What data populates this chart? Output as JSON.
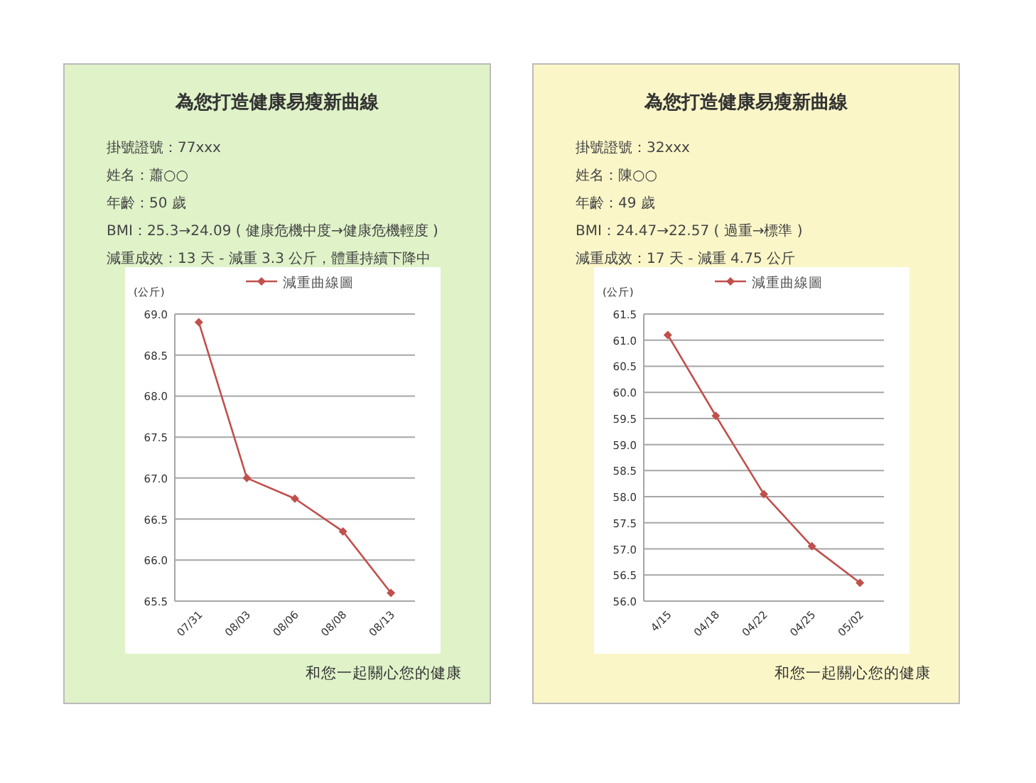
{
  "chart_data": [
    {
      "type": "line",
      "title": "為您打造健康易瘦新曲線",
      "ylabel": "(公斤)",
      "annotations": [
        "掛號證號：77xxx",
        "姓名：蕭○○",
        "年齡：50 歲",
        "BMI：25.3→24.09 ( 健康危機中度→健康危機輕度 )",
        "減重成效：13 天 - 減重 3.3 公斤，體重持續下降中",
        "和您一起關心您的健康"
      ],
      "categories": [
        "07/31",
        "08/03",
        "08/06",
        "08/08",
        "08/13"
      ],
      "series": [
        {
          "name": "減重曲線圖",
          "color": "#c0504d",
          "values": [
            68.9,
            67.0,
            66.75,
            66.35,
            65.6
          ]
        }
      ],
      "ylim": [
        65.5,
        69.0
      ],
      "yticks": [
        {
          "value": 65.5,
          "label": "65.5"
        },
        {
          "value": 66,
          "label": "66.0"
        },
        {
          "value": 66.5,
          "label": "66.5"
        },
        {
          "value": 67,
          "label": "67.0"
        },
        {
          "value": 67.5,
          "label": "67.5"
        },
        {
          "value": 68,
          "label": "68.0"
        },
        {
          "value": 68.5,
          "label": "68.5"
        },
        {
          "value": 69,
          "label": "69.0"
        }
      ],
      "grid": "y",
      "legend": "top",
      "marker": "diamond",
      "line_style": "solid"
    },
    {
      "type": "line",
      "title": "為您打造健康易瘦新曲線",
      "ylabel": "(公斤)",
      "annotations": [
        "掛號證號：32xxx",
        "姓名：陳○○",
        "年齡：49 歲",
        "BMI：24.47→22.57 ( 過重→標準 )",
        "減重成效：17 天 - 減重 4.75 公斤",
        "和您一起關心您的健康"
      ],
      "categories": [
        "4/15",
        "04/18",
        "04/22",
        "04/25",
        "05/02"
      ],
      "series": [
        {
          "name": "減重曲線圖",
          "color": "#c0504d",
          "values": [
            61.1,
            59.55,
            58.05,
            57.05,
            56.35
          ]
        }
      ],
      "ylim": [
        56.0,
        61.5
      ],
      "yticks": [
        {
          "value": 56,
          "label": "56.0"
        },
        {
          "value": 56.5,
          "label": "56.5"
        },
        {
          "value": 57,
          "label": "57.0"
        },
        {
          "value": 57.5,
          "label": "57.5"
        },
        {
          "value": 58,
          "label": "58.0"
        },
        {
          "value": 58.5,
          "label": "58.5"
        },
        {
          "value": 59,
          "label": "59.0"
        },
        {
          "value": 59.5,
          "label": "59.5"
        },
        {
          "value": 60,
          "label": "60.0"
        },
        {
          "value": 60.5,
          "label": "60.5"
        },
        {
          "value": 61,
          "label": "61.0"
        },
        {
          "value": 61.5,
          "label": "61.5"
        }
      ],
      "grid": "y",
      "legend": "top",
      "marker": "diamond",
      "line_style": "solid"
    }
  ]
}
